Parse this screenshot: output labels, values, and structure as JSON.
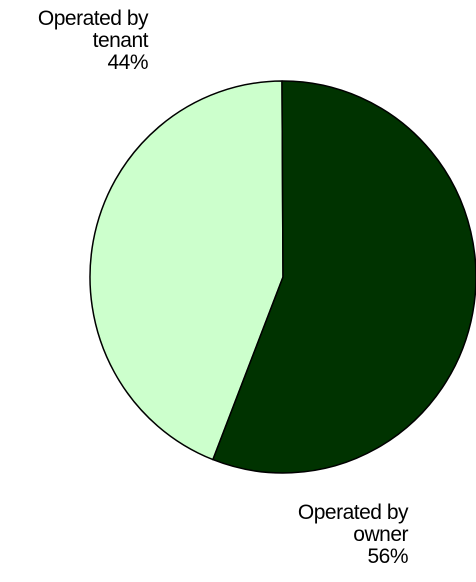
{
  "chart_data": {
    "type": "pie",
    "title": "",
    "slices": [
      {
        "label_line1": "Operated by",
        "label_line2": "tenant",
        "percent_label": "44%",
        "value": 44,
        "color": "#ccffcc"
      },
      {
        "label_line1": "Operated by",
        "label_line2": "owner",
        "percent_label": "56%",
        "value": 56,
        "color": "#003300"
      }
    ]
  }
}
